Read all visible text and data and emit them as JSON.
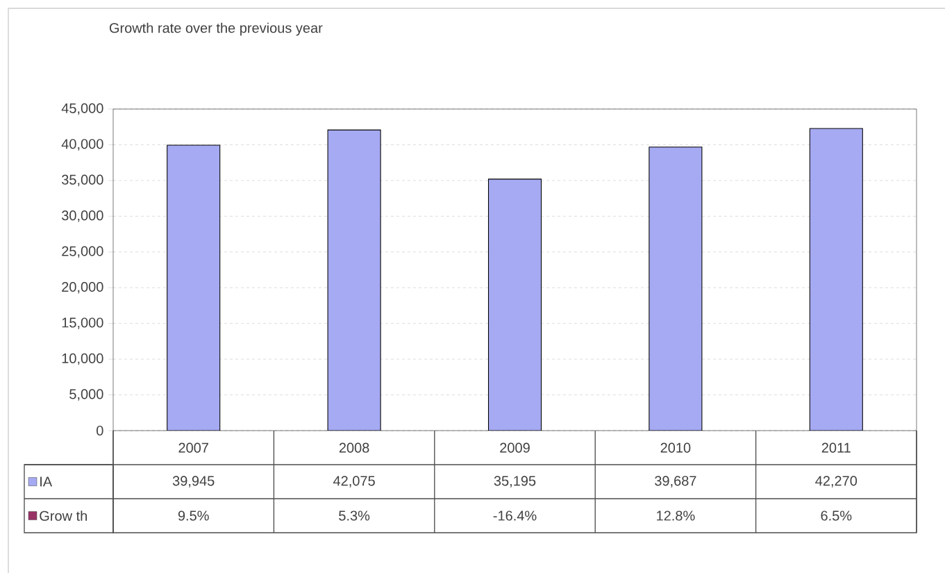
{
  "chart_data": {
    "type": "bar",
    "title": "Growth rate over the previous year",
    "categories": [
      "2007",
      "2008",
      "2009",
      "2010",
      "2011"
    ],
    "series": [
      {
        "name": "IA",
        "color": "#a6aaf2",
        "values": [
          39945,
          42075,
          35195,
          39687,
          42270
        ],
        "value_labels": [
          "39,945",
          "42,075",
          "35,195",
          "39,687",
          "42,270"
        ]
      },
      {
        "name": "Grow th",
        "color": "#993366",
        "values": [
          null,
          null,
          null,
          null,
          null
        ],
        "value_labels": [
          "9.5%",
          "5.3%",
          "-16.4%",
          "12.8%",
          "6.5%"
        ]
      }
    ],
    "ylim": [
      0,
      45000
    ],
    "yticks": [
      {
        "value": 0,
        "label": "0"
      },
      {
        "value": 5000,
        "label": "5,000"
      },
      {
        "value": 10000,
        "label": "10,000"
      },
      {
        "value": 15000,
        "label": "15,000"
      },
      {
        "value": 20000,
        "label": "20,000"
      },
      {
        "value": 25000,
        "label": "25,000"
      },
      {
        "value": 30000,
        "label": "30,000"
      },
      {
        "value": 35000,
        "label": "35,000"
      },
      {
        "value": 40000,
        "label": "40,000"
      },
      {
        "value": 45000,
        "label": "45,000"
      }
    ],
    "grid": "y"
  }
}
